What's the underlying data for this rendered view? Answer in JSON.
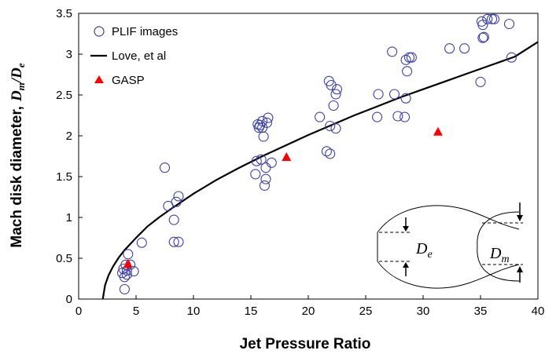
{
  "chart_data": {
    "type": "scatter",
    "xlabel": "Jet Pressure Ratio",
    "ylabel": "Mach disk diameter,",
    "ylabel_math": "D",
    "ylabel_sub_m": "m",
    "ylabel_sub_e": "e",
    "xlim": [
      0,
      40
    ],
    "ylim": [
      0,
      3.5
    ],
    "xticks": [
      0,
      5,
      10,
      15,
      20,
      25,
      30,
      35,
      40
    ],
    "yticks": [
      0,
      0.5,
      1,
      1.5,
      2,
      2.5,
      3,
      3.5
    ],
    "xtick_labels": [
      "0",
      "5",
      "10",
      "15",
      "20",
      "25",
      "30",
      "35",
      "40"
    ],
    "ytick_labels": [
      "0",
      "0.5",
      "1",
      "1.5",
      "2",
      "2.5",
      "3",
      "3.5"
    ],
    "grid": false,
    "legend_position": "top-left",
    "series": [
      {
        "name": "PLIF images",
        "marker": "open-circle",
        "color": "#3b3fa8",
        "points": [
          [
            3.8,
            0.32
          ],
          [
            3.9,
            0.37
          ],
          [
            4.0,
            0.12
          ],
          [
            4.0,
            0.27
          ],
          [
            4.1,
            0.42
          ],
          [
            4.2,
            0.3
          ],
          [
            4.2,
            0.35
          ],
          [
            4.3,
            0.55
          ],
          [
            4.5,
            0.42
          ],
          [
            4.8,
            0.34
          ],
          [
            5.5,
            0.69
          ],
          [
            7.5,
            1.61
          ],
          [
            7.8,
            1.14
          ],
          [
            8.3,
            0.7
          ],
          [
            8.3,
            0.97
          ],
          [
            8.5,
            1.19
          ],
          [
            8.7,
            1.26
          ],
          [
            8.7,
            0.7
          ],
          [
            15.4,
            1.53
          ],
          [
            15.5,
            1.69
          ],
          [
            15.6,
            2.14
          ],
          [
            15.7,
            2.1
          ],
          [
            15.8,
            2.13
          ],
          [
            15.9,
            1.71
          ],
          [
            16.0,
            2.18
          ],
          [
            16.0,
            2.1
          ],
          [
            16.1,
            1.99
          ],
          [
            16.2,
            1.39
          ],
          [
            16.3,
            1.47
          ],
          [
            16.3,
            1.61
          ],
          [
            16.4,
            2.16
          ],
          [
            16.5,
            2.22
          ],
          [
            16.8,
            1.67
          ],
          [
            21.0,
            2.23
          ],
          [
            21.6,
            1.81
          ],
          [
            21.9,
            1.78
          ],
          [
            21.8,
            2.67
          ],
          [
            21.9,
            2.12
          ],
          [
            22.0,
            2.62
          ],
          [
            22.2,
            2.37
          ],
          [
            22.4,
            2.51
          ],
          [
            22.4,
            2.09
          ],
          [
            22.5,
            2.57
          ],
          [
            26.0,
            2.23
          ],
          [
            26.1,
            2.51
          ],
          [
            27.3,
            3.03
          ],
          [
            27.5,
            2.51
          ],
          [
            27.8,
            2.24
          ],
          [
            28.4,
            2.23
          ],
          [
            28.5,
            2.93
          ],
          [
            28.5,
            2.46
          ],
          [
            28.6,
            2.79
          ],
          [
            28.8,
            2.96
          ],
          [
            29.0,
            2.96
          ],
          [
            32.3,
            3.07
          ],
          [
            33.6,
            3.07
          ],
          [
            35.0,
            2.66
          ],
          [
            35.1,
            3.4
          ],
          [
            35.2,
            3.36
          ],
          [
            35.2,
            3.2
          ],
          [
            35.3,
            3.21
          ],
          [
            35.6,
            3.43
          ],
          [
            36.0,
            3.43
          ],
          [
            36.2,
            3.43
          ],
          [
            37.5,
            3.37
          ],
          [
            37.7,
            2.96
          ]
        ]
      },
      {
        "name": "Love, et al",
        "marker": "line",
        "color": "#000000",
        "x": [
          2.1,
          2.3,
          2.6,
          3,
          3.5,
          4,
          5,
          6,
          7,
          8,
          10,
          12,
          14,
          16,
          18,
          20,
          22,
          24,
          26,
          28,
          30,
          32,
          34,
          36,
          38,
          40
        ],
        "y": [
          0.0,
          0.17,
          0.29,
          0.4,
          0.51,
          0.6,
          0.75,
          0.89,
          1.0,
          1.1,
          1.29,
          1.46,
          1.61,
          1.75,
          1.88,
          2.01,
          2.13,
          2.25,
          2.36,
          2.47,
          2.57,
          2.67,
          2.77,
          2.87,
          2.97,
          3.15
        ]
      },
      {
        "name": "GASP",
        "marker": "filled-triangle",
        "color": "#ff0000",
        "points": [
          [
            4.3,
            0.43
          ],
          [
            18.1,
            1.74
          ],
          [
            31.3,
            2.05
          ]
        ]
      }
    ],
    "inset": {
      "label_left": "D",
      "label_left_sub": "e",
      "label_right": "D",
      "label_right_sub": "m"
    }
  }
}
